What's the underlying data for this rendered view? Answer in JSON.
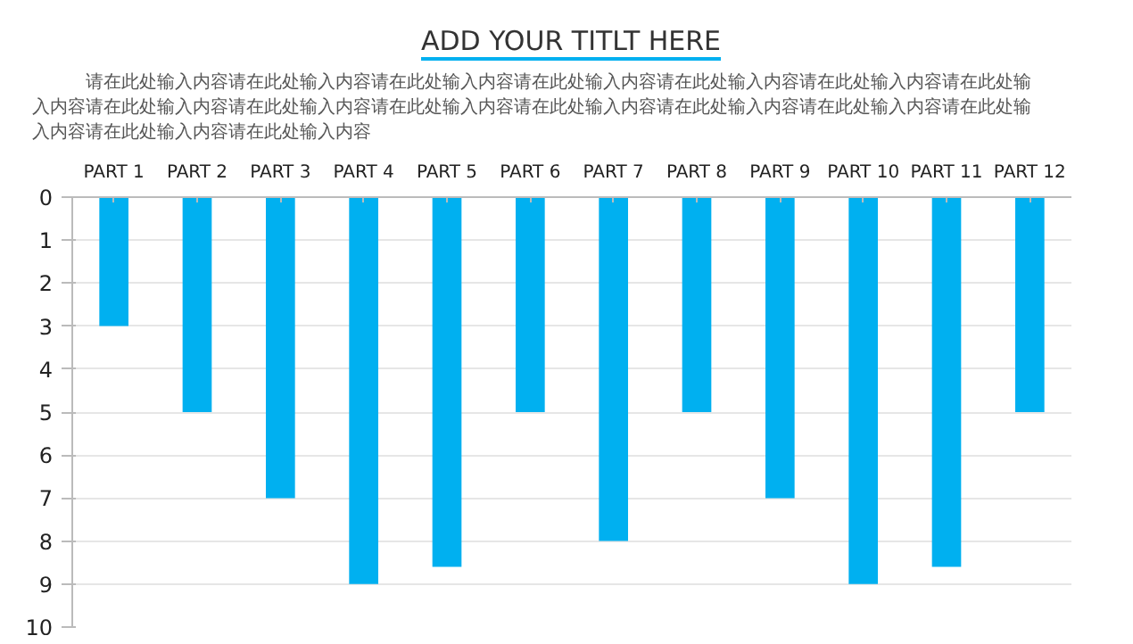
{
  "chart_data": {
    "type": "bar",
    "title": "ADD YOUR TITLT HERE",
    "subtitle": "请在此处输入内容请在此处输入内容请在此处输入内容请在此处输入内容请在此处输入内容请在此处输入内容请在此处输入内容请在此处输入内容请在此处输入内容请在此处输入内容请在此处输入内容请在此处输入内容请在此处输入内容请在此处输入内容请在此处输入内容请在此处输入内容",
    "categories": [
      "PART 1",
      "PART 2",
      "PART 3",
      "PART 4",
      "PART 5",
      "PART 6",
      "PART 7",
      "PART 8",
      "PART 9",
      "PART 10",
      "PART 11",
      "PART 12"
    ],
    "values": [
      3,
      5,
      7,
      9,
      8.6,
      5,
      8,
      5,
      7,
      9,
      8.6,
      5
    ],
    "color": "#00b0f0",
    "ylim": [
      10,
      0
    ],
    "yticks": [
      0,
      1,
      2,
      3,
      4,
      5,
      6,
      7,
      8,
      9,
      10
    ],
    "grid": "y"
  }
}
